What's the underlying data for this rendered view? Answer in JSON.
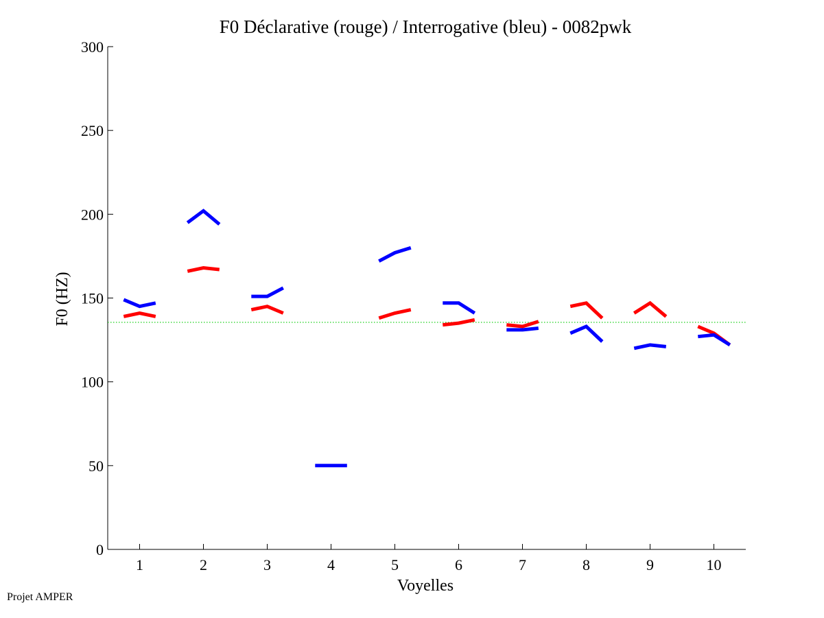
{
  "footer": {
    "credit": "Projet AMPER"
  },
  "chart_data": {
    "type": "line",
    "title": "F0 Déclarative (rouge) / Interrogative (bleu) - 0082pwk",
    "xlabel": "Voyelles",
    "ylabel": "F0 (HZ)",
    "xlim": [
      0.5,
      10.5
    ],
    "ylim": [
      0,
      300
    ],
    "xticks": [
      1,
      2,
      3,
      4,
      5,
      6,
      7,
      8,
      9,
      10
    ],
    "yticks": [
      0,
      50,
      100,
      150,
      200,
      250,
      300
    ],
    "grid": false,
    "reference_line": {
      "y": 135.5,
      "color": "#00cc00",
      "style": "dotted"
    },
    "series": [
      {
        "name": "Déclarative (rouge)",
        "color": "#ff0000",
        "segments": [
          {
            "vowel": 1,
            "points": [
              [
                0.75,
                139
              ],
              [
                1.0,
                141
              ],
              [
                1.25,
                139
              ]
            ]
          },
          {
            "vowel": 2,
            "points": [
              [
                1.75,
                166
              ],
              [
                2.0,
                168
              ],
              [
                2.25,
                167
              ]
            ]
          },
          {
            "vowel": 3,
            "points": [
              [
                2.75,
                143
              ],
              [
                3.0,
                145
              ],
              [
                3.25,
                141
              ]
            ]
          },
          {
            "vowel": 5,
            "points": [
              [
                4.75,
                138
              ],
              [
                5.0,
                141
              ],
              [
                5.25,
                143
              ]
            ]
          },
          {
            "vowel": 6,
            "points": [
              [
                5.75,
                134
              ],
              [
                6.0,
                135
              ],
              [
                6.25,
                137
              ]
            ]
          },
          {
            "vowel": 7,
            "points": [
              [
                6.75,
                134
              ],
              [
                7.0,
                133
              ],
              [
                7.25,
                136
              ]
            ]
          },
          {
            "vowel": 8,
            "points": [
              [
                7.75,
                145
              ],
              [
                8.0,
                147
              ],
              [
                8.25,
                138
              ]
            ]
          },
          {
            "vowel": 9,
            "points": [
              [
                8.75,
                141
              ],
              [
                9.0,
                147
              ],
              [
                9.25,
                139
              ]
            ]
          },
          {
            "vowel": 10,
            "points": [
              [
                9.75,
                133
              ],
              [
                10.0,
                129
              ],
              [
                10.25,
                122
              ]
            ]
          }
        ]
      },
      {
        "name": "Interrogative (bleu)",
        "color": "#0000ff",
        "segments": [
          {
            "vowel": 1,
            "points": [
              [
                0.75,
                149
              ],
              [
                1.0,
                145
              ],
              [
                1.25,
                147
              ]
            ]
          },
          {
            "vowel": 2,
            "points": [
              [
                1.75,
                195
              ],
              [
                2.0,
                202
              ],
              [
                2.25,
                194
              ]
            ]
          },
          {
            "vowel": 3,
            "points": [
              [
                2.75,
                151
              ],
              [
                3.0,
                151
              ],
              [
                3.25,
                156
              ]
            ]
          },
          {
            "vowel": 4,
            "points": [
              [
                3.75,
                50
              ],
              [
                4.0,
                50
              ],
              [
                4.25,
                50
              ]
            ]
          },
          {
            "vowel": 5,
            "points": [
              [
                4.75,
                172
              ],
              [
                5.0,
                177
              ],
              [
                5.25,
                180
              ]
            ]
          },
          {
            "vowel": 6,
            "points": [
              [
                5.75,
                147
              ],
              [
                6.0,
                147
              ],
              [
                6.25,
                141
              ]
            ]
          },
          {
            "vowel": 7,
            "points": [
              [
                6.75,
                131
              ],
              [
                7.0,
                131
              ],
              [
                7.25,
                132
              ]
            ]
          },
          {
            "vowel": 8,
            "points": [
              [
                7.75,
                129
              ],
              [
                8.0,
                133
              ],
              [
                8.25,
                124
              ]
            ]
          },
          {
            "vowel": 9,
            "points": [
              [
                8.75,
                120
              ],
              [
                9.0,
                122
              ],
              [
                9.25,
                121
              ]
            ]
          },
          {
            "vowel": 10,
            "points": [
              [
                9.75,
                127
              ],
              [
                10.0,
                128
              ],
              [
                10.25,
                122
              ]
            ]
          }
        ]
      }
    ]
  }
}
